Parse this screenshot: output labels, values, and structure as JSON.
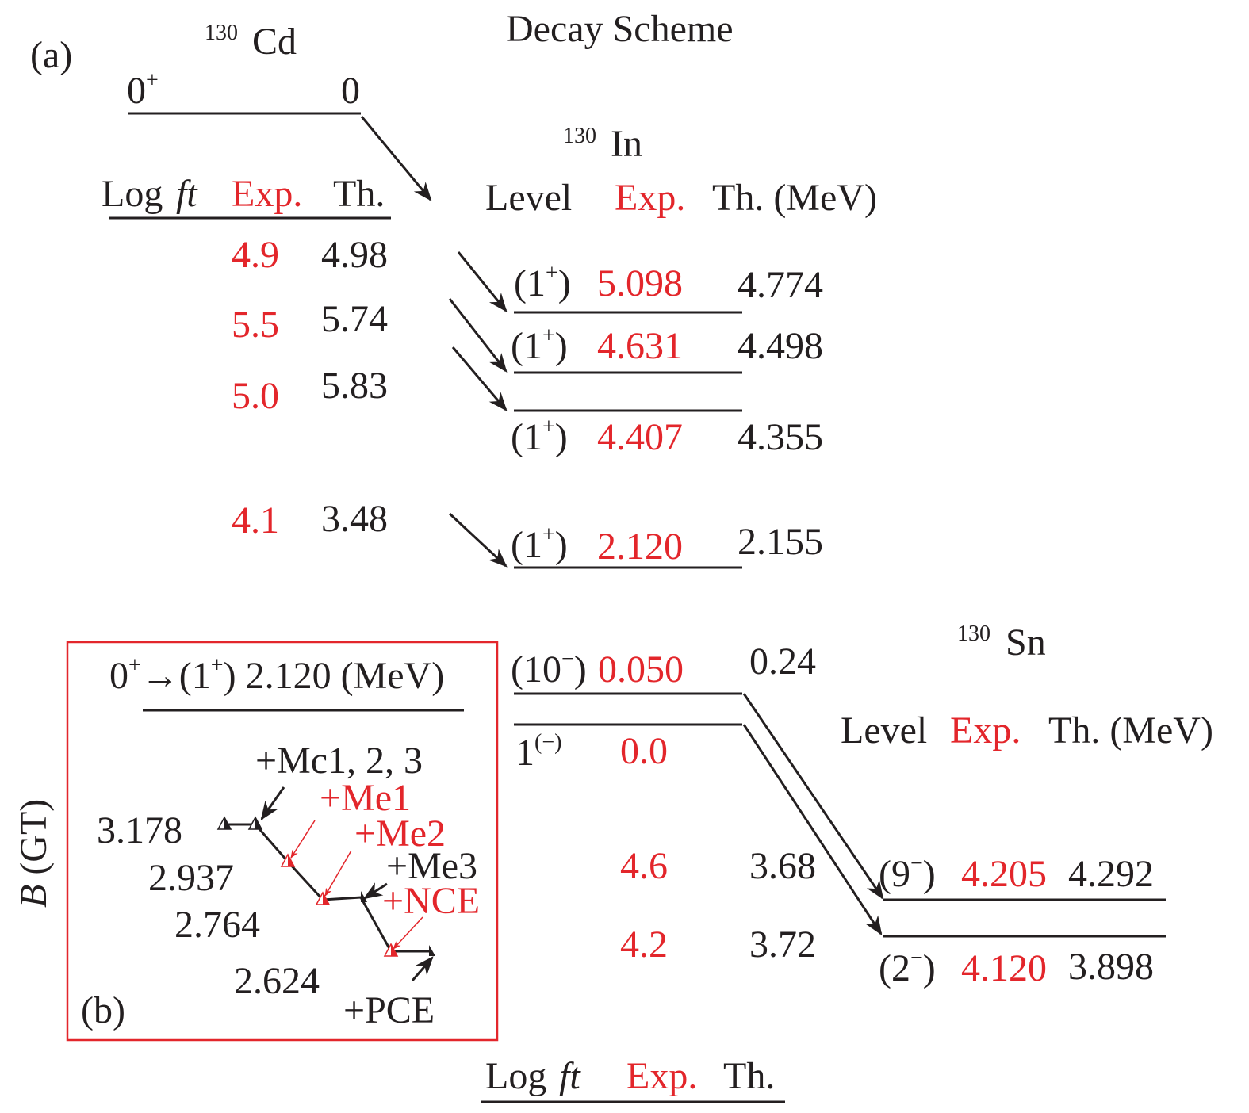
{
  "colors": {
    "experiment": "#e3262b",
    "theory": "#231f20",
    "inset_border": "#e3262b"
  },
  "panel_a": {
    "label": "(a)",
    "title": "Decay Scheme",
    "parent": {
      "mass": "130",
      "element": "Cd",
      "spin": "0",
      "parity": "+",
      "energy": "0"
    },
    "logft_header": {
      "log": "Log",
      "ft": "ft",
      "exp": "Exp.",
      "th": "Th."
    },
    "logft_rows": [
      {
        "exp": "4.9",
        "th": "4.98"
      },
      {
        "exp": "5.5",
        "th": "5.74"
      },
      {
        "exp": "5.0",
        "th": "5.83"
      },
      {
        "exp": "4.1",
        "th": "3.48"
      }
    ],
    "daughter": {
      "mass": "130",
      "element": "In"
    },
    "level_header": {
      "level": "Level",
      "exp": "Exp.",
      "th": "Th. (MeV)"
    },
    "levels": [
      {
        "jpi": "(1",
        "sup": "+",
        "close": ")",
        "exp": "5.098",
        "th": "4.774"
      },
      {
        "jpi": "(1",
        "sup": "+",
        "close": ")",
        "exp": "4.631",
        "th": "4.498"
      },
      {
        "jpi": "(1",
        "sup": "+",
        "close": ")",
        "exp": "4.407",
        "th": "4.355"
      },
      {
        "jpi": "(1",
        "sup": "+",
        "close": ")",
        "exp": "2.120",
        "th": "2.155"
      }
    ],
    "ground_levels": [
      {
        "jpi": "(10",
        "sup": "−",
        "close": ")",
        "exp": "0.050",
        "th": "0.24"
      },
      {
        "jpi": "1",
        "sup": "(−)",
        "close": "",
        "exp": "0.0"
      }
    ],
    "sn_logft_rows": [
      {
        "exp": "4.6",
        "th": "3.68"
      },
      {
        "exp": "4.2",
        "th": "3.72"
      }
    ],
    "granddaughter": {
      "mass": "130",
      "element": "Sn"
    },
    "sn_level_header": {
      "level": "Level",
      "exp": "Exp.",
      "th": "Th. (MeV)"
    },
    "sn_levels": [
      {
        "jpi": "(9",
        "sup": "−",
        "close": ")",
        "exp": "4.205",
        "th": "4.292"
      },
      {
        "jpi": "(2",
        "sup": "−",
        "close": ")",
        "exp": "4.120",
        "th": "3.898"
      }
    ],
    "bottom_header": {
      "log": "Log",
      "ft": "ft",
      "exp": "Exp.",
      "th": "Th."
    }
  },
  "panel_b": {
    "label": "(b)",
    "y_axis": {
      "italic": "B",
      "rest": " (GT)"
    },
    "title": {
      "a": "0",
      "a_sup": "+",
      "arrow": "→(1",
      "b_sup": "+",
      "rest": ") 2.120 (MeV)"
    },
    "values": [
      "3.178",
      "2.937",
      "2.764",
      "2.624"
    ],
    "annotations": [
      {
        "text": "+Mc1, 2, 3",
        "color": "black"
      },
      {
        "text": "+Me1",
        "color": "red"
      },
      {
        "text": "+Me2",
        "color": "red"
      },
      {
        "text": "+Me3",
        "color": "black"
      },
      {
        "text": "+NCE",
        "color": "red"
      },
      {
        "text": "+PCE",
        "color": "black"
      }
    ]
  }
}
